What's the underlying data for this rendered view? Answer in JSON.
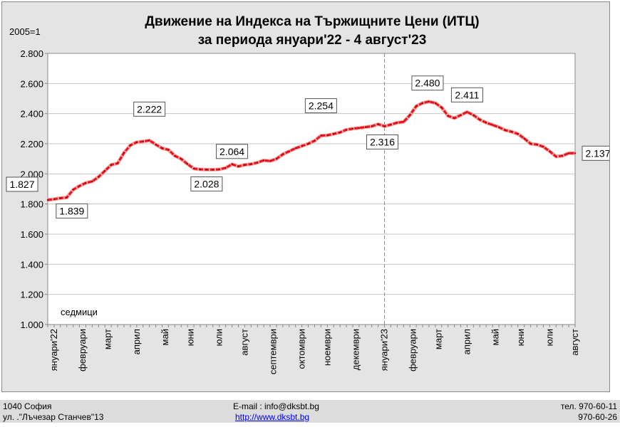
{
  "chart_data": {
    "type": "line",
    "title": "Движение на Индекса на Тържищните Цени (ИТЦ)",
    "subtitle": "за периода януари'22  - 4 август'23",
    "unit_label": "2005=1",
    "xlabel": "седмици",
    "ylabel": "",
    "ylim": [
      1.0,
      2.8
    ],
    "y_ticks": [
      "1.000",
      "1.200",
      "1.400",
      "1.600",
      "1.800",
      "2.000",
      "2.200",
      "2.400",
      "2.600",
      "2.800"
    ],
    "grid": true,
    "series_color": "#e8141e",
    "month_labels": [
      {
        "label": "януари'22",
        "week": 1
      },
      {
        "label": "февруари",
        "week": 5.5
      },
      {
        "label": "март",
        "week": 9.5
      },
      {
        "label": "април",
        "week": 14
      },
      {
        "label": "май",
        "week": 18.5
      },
      {
        "label": "юни",
        "week": 22.5
      },
      {
        "label": "юли",
        "week": 27
      },
      {
        "label": "август",
        "week": 31
      },
      {
        "label": "септември",
        "week": 35.5
      },
      {
        "label": "октомври",
        "week": 40
      },
      {
        "label": "ноември",
        "week": 44
      },
      {
        "label": "декември",
        "week": 48.5
      },
      {
        "label": "януари'23",
        "week": 53
      },
      {
        "label": "февруари",
        "week": 57.5
      },
      {
        "label": "март",
        "week": 61.5
      },
      {
        "label": "април",
        "week": 66
      },
      {
        "label": "май",
        "week": 70.5
      },
      {
        "label": "юни",
        "week": 74.5
      },
      {
        "label": "юли",
        "week": 79
      },
      {
        "label": "август",
        "week": 83
      }
    ],
    "divider_week": 53,
    "x": [
      0,
      1,
      2,
      3,
      4,
      5,
      6,
      7,
      8,
      9,
      10,
      11,
      12,
      13,
      14,
      15,
      16,
      17,
      18,
      19,
      20,
      21,
      22,
      23,
      24,
      25,
      26,
      27,
      28,
      29,
      30,
      31,
      32,
      33,
      34,
      35,
      36,
      37,
      38,
      39,
      40,
      41,
      42,
      43,
      44,
      45,
      46,
      47,
      48,
      49,
      50,
      51,
      52,
      53,
      54,
      55,
      56,
      57,
      58,
      59,
      60,
      61,
      62,
      63,
      64,
      65,
      66,
      67,
      68,
      69,
      70,
      71,
      72,
      73,
      74,
      75,
      76,
      77,
      78,
      79,
      80,
      81,
      82,
      83
    ],
    "values": [
      1.827,
      1.832,
      1.839,
      1.843,
      1.895,
      1.92,
      1.94,
      1.95,
      1.98,
      2.02,
      2.06,
      2.07,
      2.14,
      2.19,
      2.21,
      2.215,
      2.222,
      2.195,
      2.17,
      2.16,
      2.12,
      2.1,
      2.065,
      2.035,
      2.03,
      2.028,
      2.028,
      2.03,
      2.04,
      2.064,
      2.05,
      2.06,
      2.065,
      2.075,
      2.09,
      2.085,
      2.1,
      2.13,
      2.15,
      2.17,
      2.185,
      2.2,
      2.22,
      2.254,
      2.256,
      2.265,
      2.275,
      2.293,
      2.3,
      2.305,
      2.31,
      2.316,
      2.33,
      2.316,
      2.327,
      2.34,
      2.345,
      2.39,
      2.45,
      2.47,
      2.48,
      2.47,
      2.44,
      2.385,
      2.37,
      2.39,
      2.411,
      2.39,
      2.36,
      2.34,
      2.325,
      2.31,
      2.29,
      2.28,
      2.265,
      2.235,
      2.2,
      2.195,
      2.18,
      2.15,
      2.115,
      2.12,
      2.137,
      2.137
    ],
    "data_labels": [
      {
        "text": "1.827",
        "index": 0
      },
      {
        "text": "1.839",
        "index": 2
      },
      {
        "text": "2.222",
        "index": 16
      },
      {
        "text": "2.028",
        "index": 25
      },
      {
        "text": "2.064",
        "index": 29
      },
      {
        "text": "2.254",
        "index": 43
      },
      {
        "text": "2.316",
        "index": 53
      },
      {
        "text": "2.480",
        "index": 60
      },
      {
        "text": "2.411",
        "index": 66
      },
      {
        "text": "2.137",
        "index": 83
      }
    ]
  },
  "footer": {
    "address_line1": "1040 София",
    "address_line2": "ул. .\"Лъчезар Станчев\"13",
    "email": "E-mail : info@dksbt.bg",
    "website": "http://www.dksbt.bg",
    "phone1": "тел. 970-60-11",
    "phone2": "970-60-26"
  }
}
